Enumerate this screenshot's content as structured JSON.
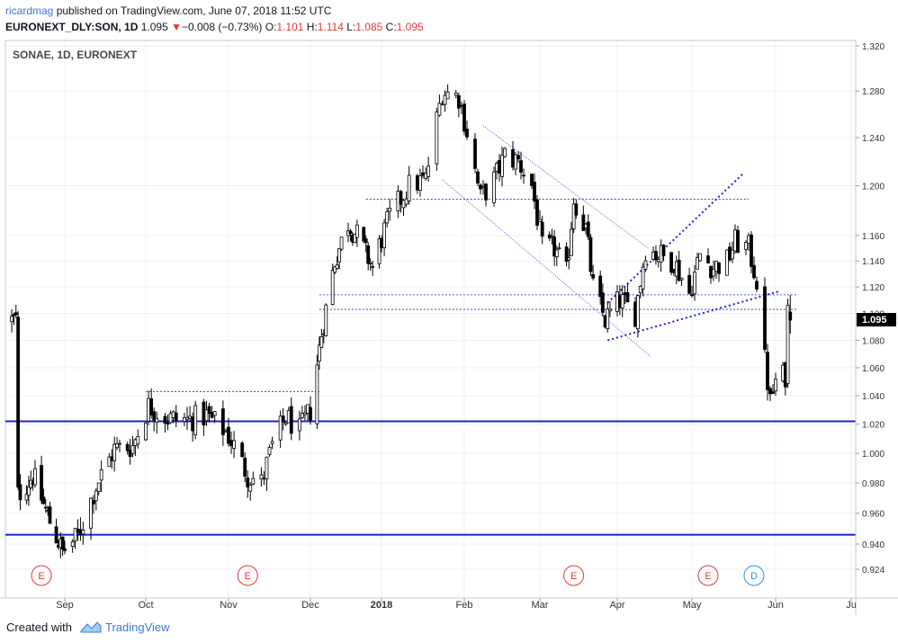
{
  "header": {
    "user": "ricardmag",
    "published_text": "published on TradingView.com, June 07, 2018 11:52 UTC",
    "symbol": "EURONEXT_DLY:SON, 1D",
    "last": "1.095",
    "change_arrow": "▼",
    "change": "−0.008 (−0.73%)",
    "o_label": "O:",
    "o_value": "1.101",
    "h_label": "H:",
    "h_value": "1.114",
    "l_label": "L:",
    "l_value": "1.085",
    "c_label": "C:",
    "c_value": "1.095"
  },
  "chart_data": {
    "type": "candlestick",
    "title": "SONAE, 1D, EURONEXT",
    "x_tick_labels": [
      "Sep",
      "Oct",
      "Nov",
      "Dec",
      "2018",
      "Feb",
      "Mar",
      "Apr",
      "May",
      "Jun",
      "Ju"
    ],
    "y_tick_labels": [
      "1.320",
      "1.280",
      "1.240",
      "1.200",
      "1.160",
      "1.140",
      "1.120",
      "1.100",
      "1.080",
      "1.060",
      "1.040",
      "1.020",
      "1.000",
      "0.980",
      "0.960",
      "0.940",
      "0.924"
    ],
    "y_scale": "log",
    "ylim": [
      0.917,
      1.325
    ],
    "last_price": "1.095",
    "anchors": [
      {
        "date": "2017-08-10",
        "close": 0.972
      },
      {
        "date": "2017-08-17",
        "close": 0.985
      },
      {
        "date": "2017-08-24",
        "close": 0.958
      },
      {
        "date": "2017-08-31",
        "close": 0.935
      },
      {
        "date": "2017-09-06",
        "close": 0.945
      },
      {
        "date": "2017-09-13",
        "close": 0.978
      },
      {
        "date": "2017-09-20",
        "close": 1.003
      },
      {
        "date": "2017-09-27",
        "close": 1.005
      },
      {
        "date": "2017-10-03",
        "close": 1.033
      },
      {
        "date": "2017-10-10",
        "close": 1.024
      },
      {
        "date": "2017-10-17",
        "close": 1.023
      },
      {
        "date": "2017-10-24",
        "close": 1.026
      },
      {
        "date": "2017-10-31",
        "close": 1.015
      },
      {
        "date": "2017-11-03",
        "close": 1.005
      },
      {
        "date": "2017-11-08",
        "close": 0.985
      },
      {
        "date": "2017-11-13",
        "close": 0.98
      },
      {
        "date": "2017-11-17",
        "close": 1.005
      },
      {
        "date": "2017-11-22",
        "close": 1.025
      },
      {
        "date": "2017-11-27",
        "close": 1.015
      },
      {
        "date": "2017-12-01",
        "close": 1.03
      },
      {
        "date": "2017-12-06",
        "close": 1.085
      },
      {
        "date": "2017-12-12",
        "close": 1.14
      },
      {
        "date": "2017-12-18",
        "close": 1.17
      },
      {
        "date": "2017-12-22",
        "close": 1.16
      },
      {
        "date": "2017-12-29",
        "close": 1.135
      },
      {
        "date": "2018-01-05",
        "close": 1.175
      },
      {
        "date": "2018-01-12",
        "close": 1.2
      },
      {
        "date": "2018-01-18",
        "close": 1.205
      },
      {
        "date": "2018-01-24",
        "close": 1.28
      },
      {
        "date": "2018-01-30",
        "close": 1.275
      },
      {
        "date": "2018-02-02",
        "close": 1.245
      },
      {
        "date": "2018-02-07",
        "close": 1.19
      },
      {
        "date": "2018-02-12",
        "close": 1.205
      },
      {
        "date": "2018-02-16",
        "close": 1.225
      },
      {
        "date": "2018-02-21",
        "close": 1.22
      },
      {
        "date": "2018-02-26",
        "close": 1.2
      },
      {
        "date": "2018-03-02",
        "close": 1.15
      },
      {
        "date": "2018-03-07",
        "close": 1.15
      },
      {
        "date": "2018-03-12",
        "close": 1.13
      },
      {
        "date": "2018-03-15",
        "close": 1.19
      },
      {
        "date": "2018-03-20",
        "close": 1.165
      },
      {
        "date": "2018-03-23",
        "close": 1.12
      },
      {
        "date": "2018-03-28",
        "close": 1.095
      },
      {
        "date": "2018-04-03",
        "close": 1.11
      },
      {
        "date": "2018-04-09",
        "close": 1.1
      },
      {
        "date": "2018-04-13",
        "close": 1.15
      },
      {
        "date": "2018-04-18",
        "close": 1.145
      },
      {
        "date": "2018-04-24",
        "close": 1.14
      },
      {
        "date": "2018-04-30",
        "close": 1.115
      },
      {
        "date": "2018-05-04",
        "close": 1.145
      },
      {
        "date": "2018-05-09",
        "close": 1.135
      },
      {
        "date": "2018-05-14",
        "close": 1.14
      },
      {
        "date": "2018-05-17",
        "close": 1.155
      },
      {
        "date": "2018-05-22",
        "close": 1.15
      },
      {
        "date": "2018-05-25",
        "close": 1.125
      },
      {
        "date": "2018-05-28",
        "close": 1.065
      },
      {
        "date": "2018-05-30",
        "close": 1.035
      },
      {
        "date": "2018-06-01",
        "close": 1.05
      },
      {
        "date": "2018-06-05",
        "close": 1.055
      },
      {
        "date": "2018-06-06",
        "close": 1.103
      },
      {
        "date": "2018-06-07",
        "close": 1.095
      }
    ],
    "horizontal_levels": [
      1.022,
      0.946
    ],
    "dotted_levels": [
      1.189,
      1.114,
      1.103,
      1.043
    ],
    "events": [
      {
        "label": "E",
        "date": "2017-08-21"
      },
      {
        "label": "E",
        "date": "2017-11-08"
      },
      {
        "label": "E",
        "date": "2018-03-15"
      },
      {
        "label": "E",
        "date": "2018-05-07"
      },
      {
        "label": "D",
        "date": "2018-05-24"
      }
    ],
    "colors": {
      "up": "#ffffff",
      "down": "#000000",
      "levels": "#1a23d6",
      "trend": "#1a23d6",
      "event_e": "#e53935",
      "event_d": "#2196f3"
    }
  },
  "footer": {
    "created_with": "Created with",
    "brand": "TradingView"
  }
}
